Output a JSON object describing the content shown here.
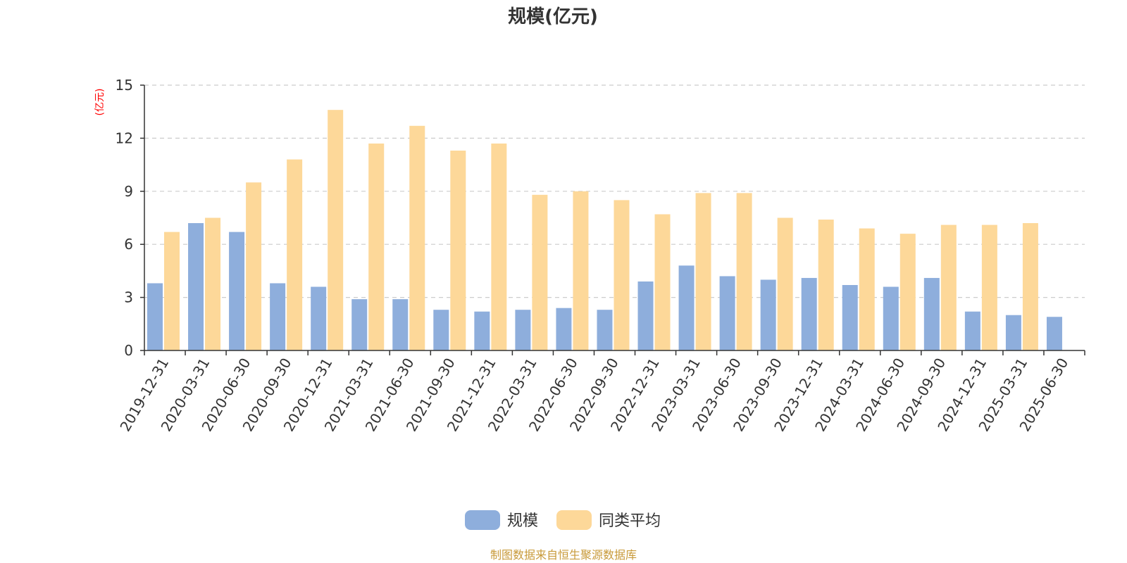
{
  "chart_data": {
    "type": "bar",
    "title": "规模(亿元)",
    "y_unit": "(亿元)",
    "ylim": [
      0,
      15
    ],
    "yticks": [
      0,
      3,
      6,
      9,
      12,
      15
    ],
    "grid": true,
    "legend_position": "bottom-center",
    "categories": [
      "2019-12-31",
      "2020-03-31",
      "2020-06-30",
      "2020-09-30",
      "2020-12-31",
      "2021-03-31",
      "2021-06-30",
      "2021-09-30",
      "2021-12-31",
      "2022-03-31",
      "2022-06-30",
      "2022-09-30",
      "2022-12-31",
      "2023-03-31",
      "2023-06-30",
      "2023-09-30",
      "2023-12-31",
      "2024-03-31",
      "2024-06-30",
      "2024-09-30",
      "2024-12-31",
      "2025-03-31",
      "2025-06-30"
    ],
    "series": [
      {
        "name": "规模",
        "color": "#8eaedc",
        "values": [
          3.8,
          7.2,
          6.7,
          3.8,
          3.6,
          2.9,
          2.9,
          2.3,
          2.2,
          2.3,
          2.4,
          2.3,
          3.9,
          4.8,
          4.2,
          4.0,
          4.1,
          3.7,
          3.6,
          4.1,
          2.2,
          2.0,
          1.9
        ]
      },
      {
        "name": "同类平均",
        "color": "#fdd899",
        "values": [
          6.7,
          7.5,
          9.5,
          10.8,
          13.6,
          11.7,
          12.7,
          11.3,
          11.7,
          8.8,
          9.0,
          8.5,
          7.7,
          8.9,
          8.9,
          7.5,
          7.4,
          6.9,
          6.6,
          7.1,
          7.1,
          7.2,
          null
        ]
      }
    ],
    "source": "制图数据来自恒生聚源数据库",
    "unit_color": "#ff0000",
    "source_color": "#c89a3a"
  }
}
